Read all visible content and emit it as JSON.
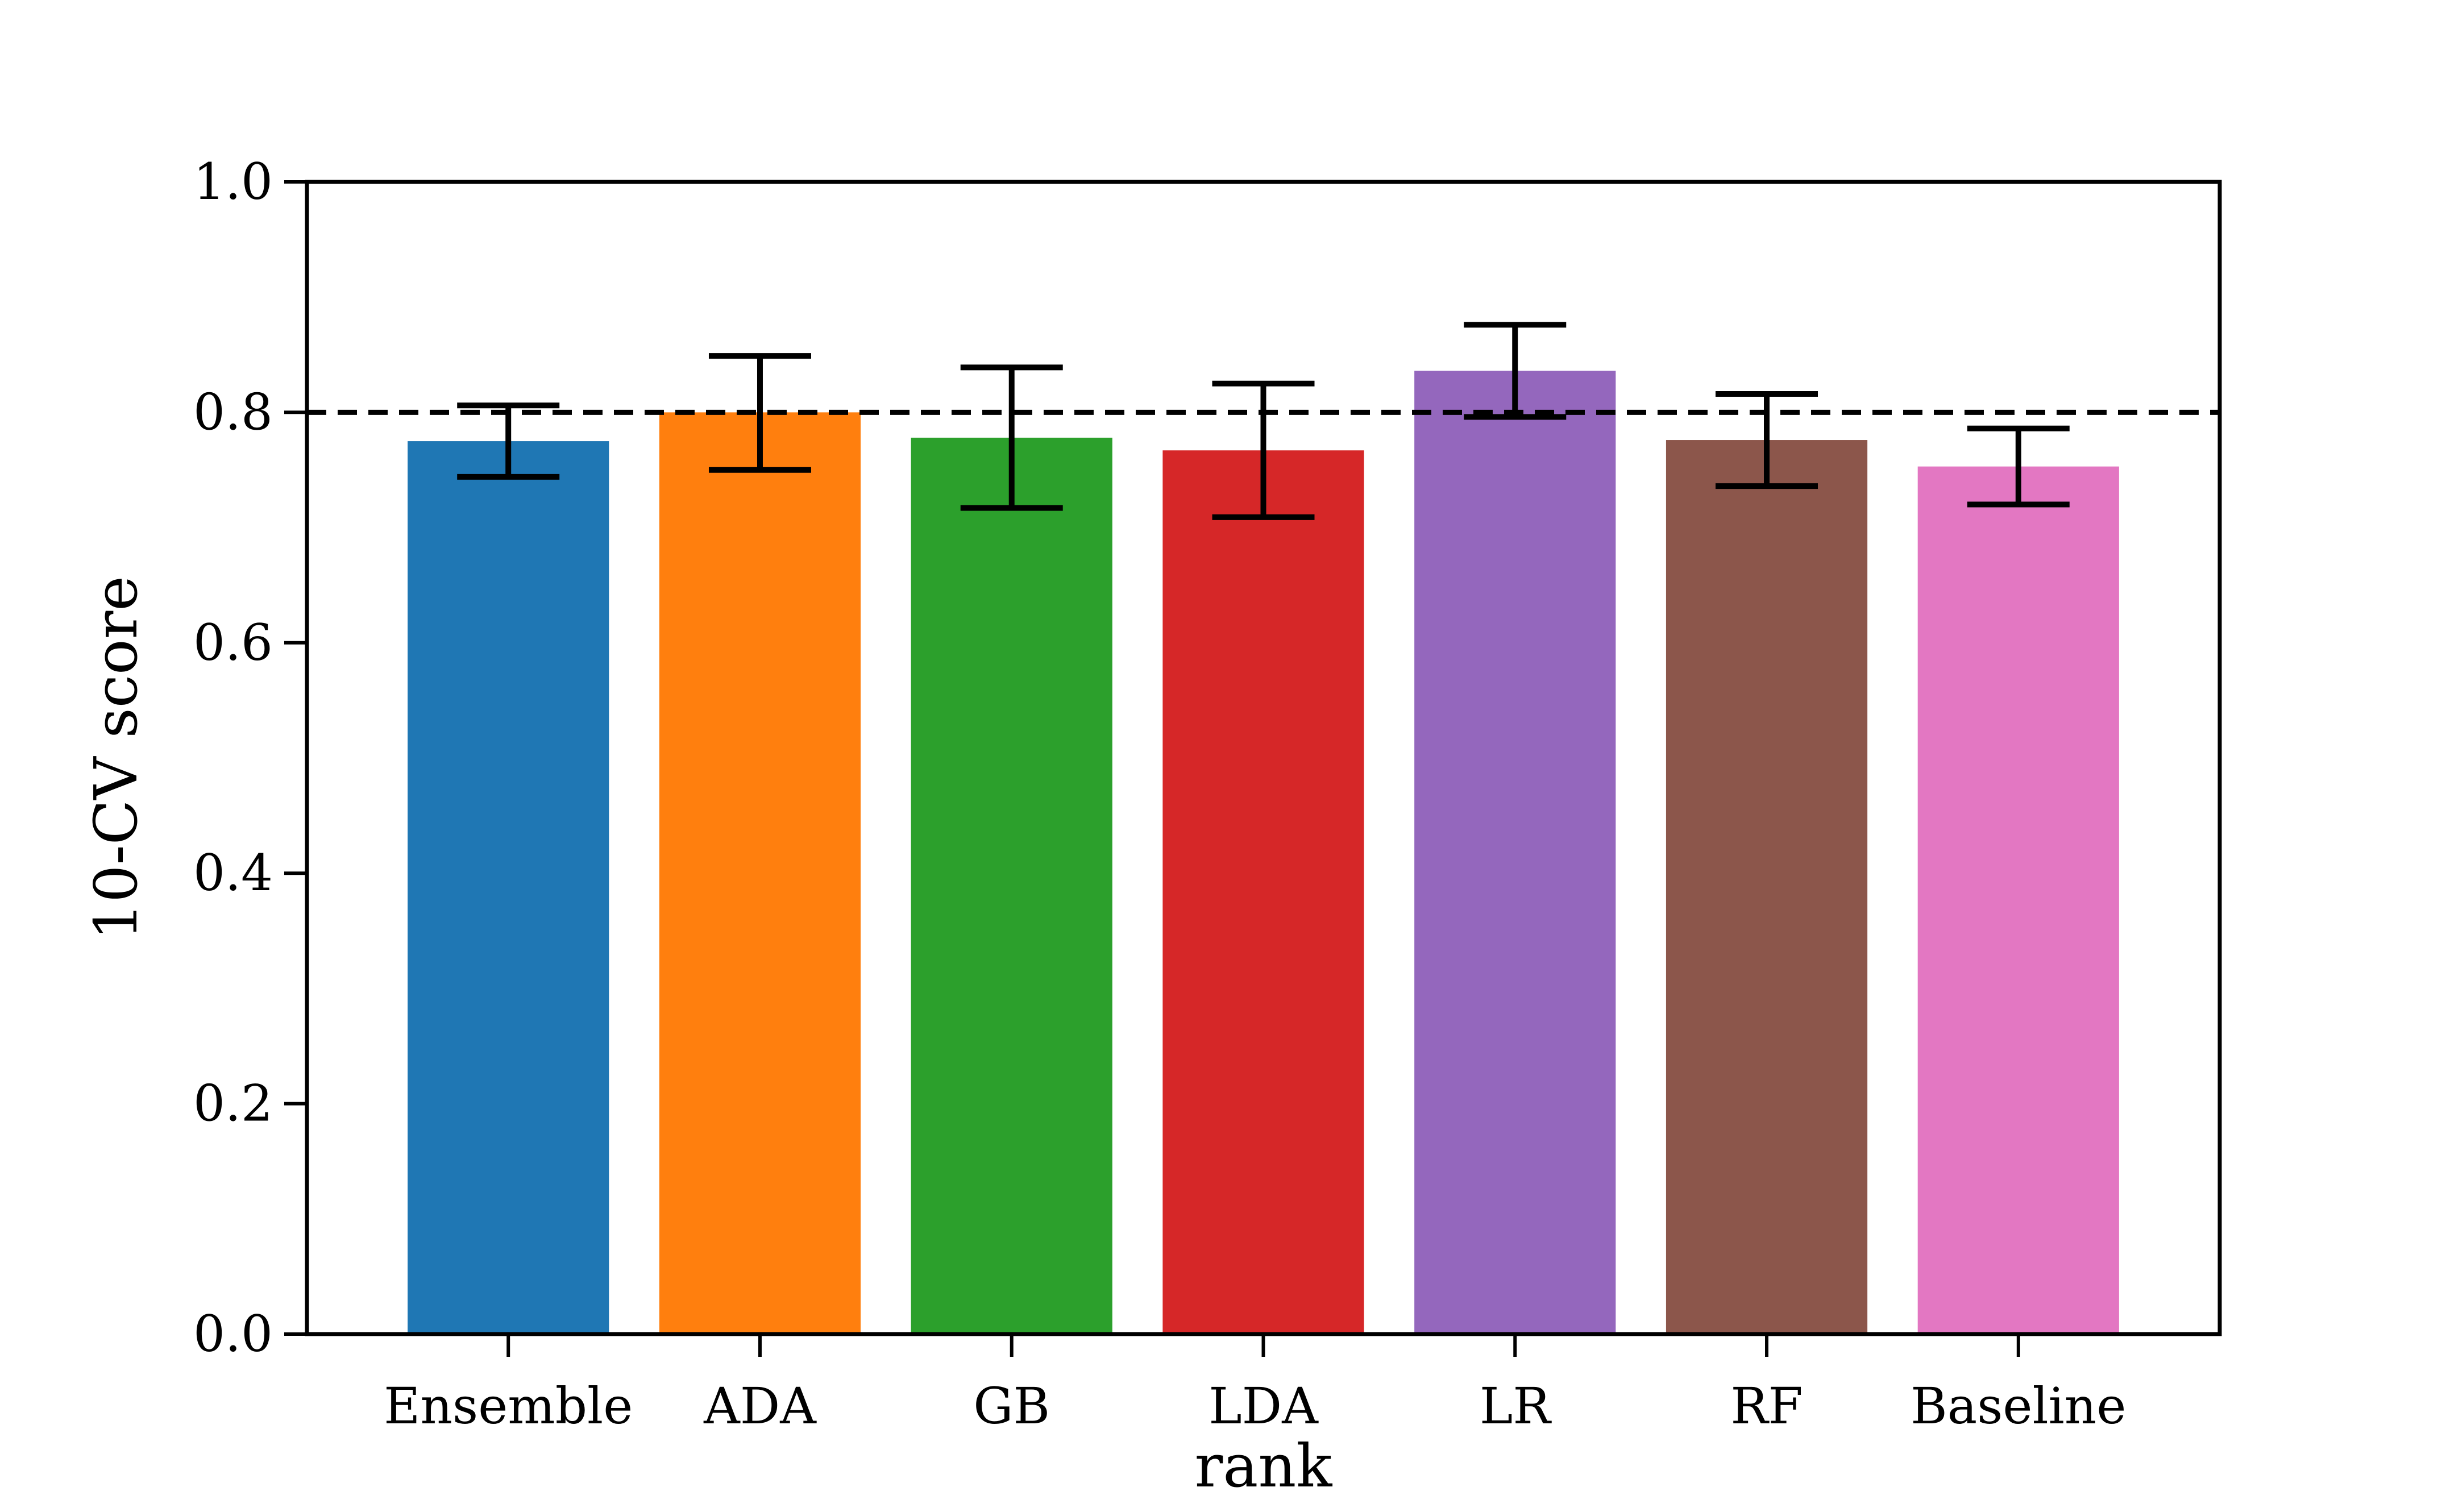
{
  "chart_data": {
    "type": "bar",
    "title": "",
    "xlabel": "rank",
    "ylabel": "10-CV score",
    "ylim": [
      0.0,
      1.0
    ],
    "yticks": [
      "0.0",
      "0.2",
      "0.4",
      "0.6",
      "0.8",
      "1.0"
    ],
    "categories": [
      "Ensemble",
      "ADA",
      "GB",
      "LDA",
      "LR",
      "RF",
      "Baseline"
    ],
    "values": [
      0.775,
      0.8,
      0.778,
      0.767,
      0.836,
      0.776,
      0.753
    ],
    "error_low": [
      0.744,
      0.75,
      0.717,
      0.709,
      0.796,
      0.736,
      0.72
    ],
    "error_high": [
      0.806,
      0.849,
      0.839,
      0.825,
      0.876,
      0.816,
      0.786
    ],
    "colors": [
      "#1f77b4",
      "#ff7f0e",
      "#2ca02c",
      "#d62728",
      "#9467bd",
      "#8c564b",
      "#e377c2"
    ],
    "reference_line": {
      "value": 0.8,
      "style": "dashed",
      "color": "#000000"
    },
    "grid": false,
    "legend": "none"
  }
}
